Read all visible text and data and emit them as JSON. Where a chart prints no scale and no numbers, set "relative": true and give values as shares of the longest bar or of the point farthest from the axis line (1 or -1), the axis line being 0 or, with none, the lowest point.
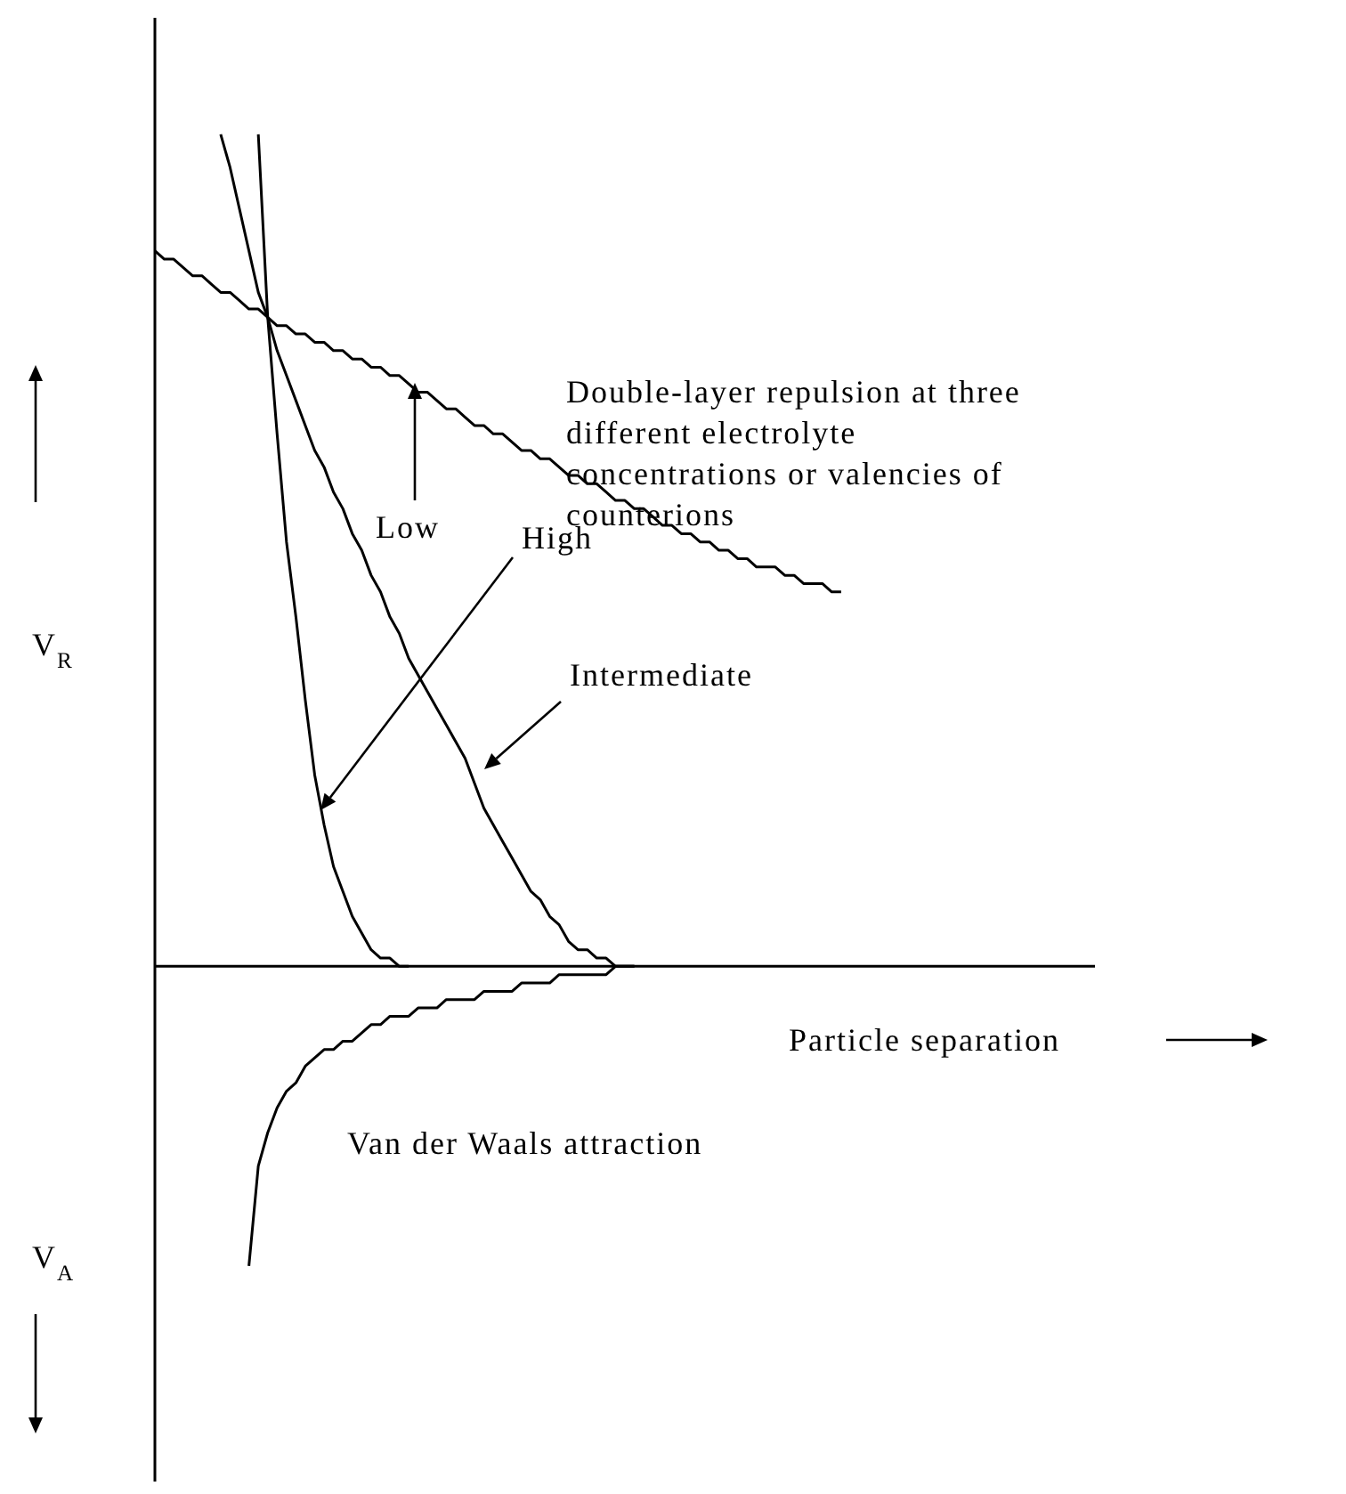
{
  "chart_data": {
    "type": "line",
    "relative": true,
    "xlabel": "Particle separation",
    "ylabel": "V$_{R}$",
    "line_style": "solid",
    "categories": [
      null,
      null,
      null,
      null,
      null,
      null,
      null,
      null,
      null,
      null,
      null,
      null,
      null,
      null,
      null,
      null,
      null,
      null,
      null,
      null,
      null,
      null,
      null,
      null,
      null,
      null,
      null,
      null,
      null,
      null,
      null,
      null,
      null,
      null,
      null,
      null,
      null,
      null,
      null,
      null,
      null,
      null,
      null,
      null,
      null,
      null,
      null,
      null,
      null,
      null,
      null,
      null,
      null,
      null,
      null,
      null,
      null,
      null,
      null,
      null,
      null,
      null,
      null,
      null,
      null,
      null,
      null,
      null,
      null,
      null,
      null,
      null,
      null,
      null,
      null,
      null,
      null,
      null,
      null,
      null,
      null,
      null,
      null,
      null,
      null,
      null,
      null,
      null,
      null,
      null,
      null,
      null,
      null,
      null,
      null,
      null,
      null,
      null,
      null,
      null,
      null
    ],
    "series": [
      {
        "color": "#000000",
        "values": [
          null,
          null,
          null,
          null,
          null,
          null,
          null,
          null,
          null,
          null,
          null,
          1.0,
          0.78,
          0.64,
          0.51,
          0.42,
          0.32,
          0.23,
          0.17,
          0.12,
          0.09,
          0.06,
          0.04,
          0.02,
          0.01,
          0.01,
          0,
          0,
          null,
          null,
          null,
          null,
          null,
          null,
          null,
          null,
          null,
          null,
          null,
          null,
          null,
          null,
          null,
          null,
          null,
          null,
          null,
          null,
          null,
          null,
          null,
          null,
          null,
          null,
          null,
          null,
          null,
          null,
          null,
          null,
          null,
          null,
          null,
          null,
          null,
          null,
          null,
          null,
          null,
          null,
          null,
          null,
          null,
          null,
          null,
          null,
          null,
          null,
          null,
          null,
          null,
          null,
          null,
          null,
          null,
          null,
          null,
          null,
          null,
          null,
          null,
          null,
          null,
          null,
          null,
          null,
          null,
          null,
          null,
          null,
          null
        ]
      },
      {
        "color": "#000000",
        "values": [
          null,
          null,
          null,
          null,
          null,
          null,
          null,
          1.0,
          0.96,
          0.91,
          0.86,
          0.81,
          0.78,
          0.74,
          0.71,
          0.68,
          0.65,
          0.62,
          0.6,
          0.57,
          0.55,
          0.52,
          0.5,
          0.47,
          0.45,
          0.42,
          0.4,
          0.37,
          0.35,
          0.33,
          0.31,
          0.29,
          0.27,
          0.25,
          0.22,
          0.19,
          0.17,
          0.15,
          0.13,
          0.11,
          0.09,
          0.08,
          0.06,
          0.05,
          0.03,
          0.02,
          0.02,
          0.01,
          0.01,
          0,
          0,
          0,
          null,
          null,
          null,
          null,
          null,
          null,
          null,
          null,
          null,
          null,
          null,
          null,
          null,
          null,
          null,
          null,
          null,
          null,
          null,
          null,
          null,
          null,
          null,
          null,
          null,
          null,
          null,
          null,
          null,
          null,
          null,
          null,
          null,
          null,
          null,
          null,
          null,
          null,
          null,
          null,
          null,
          null,
          null,
          null,
          null,
          null,
          null,
          null,
          null
        ]
      },
      {
        "color": "#000000",
        "values": [
          0.86,
          0.85,
          0.85,
          0.84,
          0.83,
          0.83,
          0.82,
          0.81,
          0.81,
          0.8,
          0.79,
          0.79,
          0.78,
          0.77,
          0.77,
          0.76,
          0.76,
          0.75,
          0.75,
          0.74,
          0.74,
          0.73,
          0.73,
          0.72,
          0.72,
          0.71,
          0.71,
          0.7,
          0.69,
          0.69,
          0.68,
          0.67,
          0.67,
          0.66,
          0.65,
          0.65,
          0.64,
          0.64,
          0.63,
          0.62,
          0.62,
          0.61,
          0.61,
          0.6,
          0.59,
          0.59,
          0.58,
          0.58,
          0.57,
          0.56,
          0.56,
          0.55,
          0.55,
          0.54,
          0.53,
          0.53,
          0.52,
          0.52,
          0.51,
          0.51,
          0.5,
          0.5,
          0.49,
          0.49,
          0.48,
          0.48,
          0.48,
          0.47,
          0.47,
          0.46,
          0.46,
          0.46,
          0.45,
          0.45,
          null,
          null,
          null,
          null,
          null,
          null,
          null,
          null,
          null,
          null,
          null,
          null,
          null,
          null,
          null,
          null,
          null,
          null,
          null,
          null,
          null,
          null,
          null,
          null,
          null,
          null,
          null
        ]
      },
      {
        "color": "#000000",
        "values": [
          null,
          null,
          null,
          null,
          null,
          null,
          null,
          null,
          null,
          null,
          -0.36,
          -0.24,
          -0.2,
          -0.17,
          -0.15,
          -0.14,
          -0.12,
          -0.11,
          -0.1,
          -0.1,
          -0.09,
          -0.09,
          -0.08,
          -0.07,
          -0.07,
          -0.06,
          -0.06,
          -0.06,
          -0.05,
          -0.05,
          -0.05,
          -0.04,
          -0.04,
          -0.04,
          -0.04,
          -0.03,
          -0.03,
          -0.03,
          -0.03,
          -0.02,
          -0.02,
          -0.02,
          -0.02,
          -0.01,
          -0.01,
          -0.01,
          -0.01,
          -0.01,
          -0.01,
          0,
          0,
          0,
          null,
          null,
          null,
          null,
          null,
          null,
          null,
          null,
          null,
          null,
          null,
          null,
          null,
          null,
          null,
          null,
          null,
          null,
          null,
          null,
          null,
          null,
          null,
          null,
          null,
          null,
          null,
          null,
          null,
          null,
          null,
          null,
          null,
          null,
          null,
          null,
          null,
          null,
          null,
          null,
          null,
          null,
          null,
          null,
          null,
          null,
          null,
          null,
          null
        ]
      }
    ],
    "annotations": [
      "Double-layer repulsion at three different electrolyte concentrations or valencies of counterions",
      "Low",
      "High",
      "Intermediate",
      "Van der Waals attraction",
      "V$_{A}$"
    ]
  }
}
